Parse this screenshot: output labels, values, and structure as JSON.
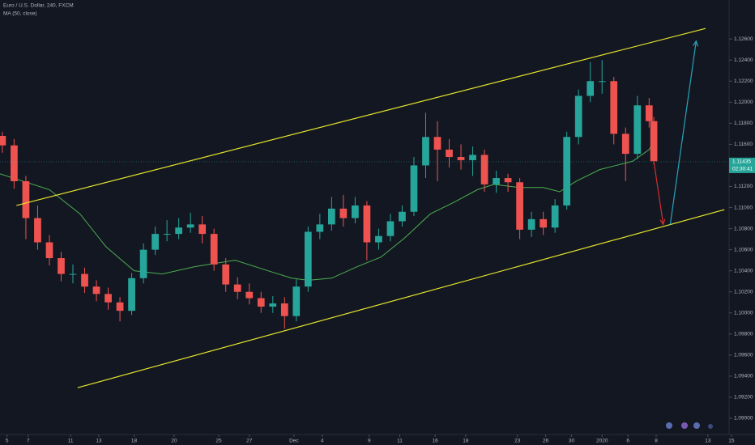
{
  "chart_data": {
    "type": "candlestick",
    "title": "Euro / U.S. Dollar, 240, FXCM",
    "up_color": "#26a69a",
    "down_color": "#ef5350",
    "x": [
      1,
      6,
      11,
      16,
      21,
      26,
      31,
      36,
      41,
      46,
      51,
      56,
      61,
      66,
      71,
      76,
      81,
      86,
      91,
      96,
      101,
      106,
      111,
      116,
      121,
      126,
      131,
      136,
      141,
      146,
      151,
      156,
      161,
      166,
      171,
      176,
      181,
      186,
      191,
      196,
      201,
      206,
      211,
      216,
      221,
      226,
      231,
      236,
      241,
      246,
      251,
      256,
      261,
      266,
      271,
      276,
      278
    ],
    "open": [
      1.1168,
      1.1159,
      1.1125,
      1.109,
      1.1067,
      1.1052,
      1.1037,
      1.1037,
      1.1025,
      1.1018,
      1.101,
      1.1002,
      1.1033,
      1.106,
      1.1075,
      1.1075,
      1.1081,
      1.1084,
      1.1075,
      1.1046,
      1.1027,
      1.102,
      1.1014,
      1.1006,
      1.1009,
      1.0997,
      1.1025,
      1.1077,
      1.1084,
      1.1099,
      1.109,
      1.1102,
      1.1067,
      1.1073,
      1.1087,
      1.1096,
      1.114,
      1.1167,
      1.1155,
      1.1148,
      1.1145,
      1.115,
      1.1122,
      1.1128,
      1.1124,
      1.1079,
      1.1089,
      1.1081,
      1.1102,
      1.1167,
      1.1206,
      1.122,
      1.122,
      1.117,
      1.1151,
      1.1197,
      1.1182
    ],
    "high": [
      1.1172,
      1.1165,
      1.113,
      1.1102,
      1.1074,
      1.1058,
      1.1046,
      1.1043,
      1.1031,
      1.1024,
      1.1015,
      1.1038,
      1.1066,
      1.1082,
      1.1088,
      1.109,
      1.1095,
      1.1092,
      1.108,
      1.1052,
      1.1034,
      1.1028,
      1.102,
      1.1016,
      1.1015,
      1.1032,
      1.1082,
      1.1094,
      1.111,
      1.1112,
      1.111,
      1.1106,
      1.108,
      1.1094,
      1.1102,
      1.1148,
      1.119,
      1.1182,
      1.1165,
      1.116,
      1.1158,
      1.1155,
      1.1135,
      1.1132,
      1.1128,
      1.1096,
      1.1096,
      1.1108,
      1.1172,
      1.1212,
      1.1238,
      1.124,
      1.1224,
      1.1176,
      1.1206,
      1.1204,
      1.1186
    ],
    "low": [
      1.1152,
      1.1118,
      1.107,
      1.106,
      1.1045,
      1.103,
      1.1028,
      1.1019,
      1.1011,
      1.1003,
      1.0992,
      1.0998,
      1.1028,
      1.1055,
      1.1068,
      1.107,
      1.1076,
      1.1066,
      1.104,
      1.102,
      1.1013,
      1.1008,
      1.1,
      1.1,
      1.0985,
      1.0992,
      1.102,
      1.107,
      1.1078,
      1.1082,
      1.1085,
      1.105,
      1.106,
      1.1068,
      1.1082,
      1.1092,
      1.1128,
      1.1125,
      1.1138,
      1.1136,
      1.113,
      1.1115,
      1.1114,
      1.1115,
      1.107,
      1.1072,
      1.1074,
      1.1076,
      1.1098,
      1.116,
      1.12,
      1.1208,
      1.116,
      1.1125,
      1.1146,
      1.1176,
      1.1141
    ],
    "close": [
      1.1159,
      1.1125,
      1.109,
      1.1067,
      1.1052,
      1.1037,
      1.1037,
      1.1025,
      1.1018,
      1.101,
      1.1002,
      1.1033,
      1.106,
      1.1075,
      1.1075,
      1.1081,
      1.1084,
      1.1075,
      1.1046,
      1.1027,
      1.102,
      1.1014,
      1.1006,
      1.1009,
      1.0997,
      1.1025,
      1.1077,
      1.1084,
      1.1099,
      1.109,
      1.1102,
      1.1067,
      1.1073,
      1.1087,
      1.1096,
      1.114,
      1.1167,
      1.1155,
      1.1148,
      1.1145,
      1.115,
      1.1122,
      1.1128,
      1.1124,
      1.1079,
      1.1089,
      1.1081,
      1.1102,
      1.1167,
      1.1206,
      1.122,
      1.122,
      1.117,
      1.1151,
      1.1197,
      1.1182,
      1.1144
    ],
    "ma": {
      "name": "MA (50, close)",
      "color": "#4caf50",
      "x": [
        0,
        21,
        34,
        45,
        57,
        69,
        83,
        100,
        114,
        124,
        131,
        141,
        152,
        162,
        172,
        183,
        193,
        203,
        210,
        221,
        231,
        238,
        245,
        255,
        262,
        269,
        276,
        278
      ],
      "values": [
        1.1132,
        1.1117,
        1.1094,
        1.1063,
        1.104,
        1.1037,
        1.1044,
        1.105,
        1.104,
        1.1033,
        1.1031,
        1.1033,
        1.1044,
        1.1053,
        1.1071,
        1.1094,
        1.1105,
        1.1117,
        1.1122,
        1.1119,
        1.1119,
        1.1115,
        1.1125,
        1.1136,
        1.114,
        1.1144,
        1.1155,
        1.1163
      ]
    },
    "drawings": [
      {
        "color": "#e4e42c",
        "x": [
          7,
          300
        ],
        "y": [
          1.1102,
          1.127
        ]
      },
      {
        "color": "#e4e42c",
        "x": [
          33,
          308
        ],
        "y": [
          1.0929,
          1.1098
        ]
      },
      {
        "color": "#d32f2f",
        "x": [
          278,
          282
        ],
        "y": [
          1.1144,
          1.1084
        ],
        "arrow": true
      },
      {
        "color": "#26a4b8",
        "x": [
          285,
          296
        ],
        "y": [
          1.1084,
          1.1258
        ],
        "arrow": true
      }
    ],
    "last_price": 1.11435,
    "countdown": "02:30:41",
    "xlim": [
      0,
      310
    ],
    "ylim": [
      1.089,
      1.1297
    ],
    "xticks": [
      {
        "value": 3,
        "label": "5"
      },
      {
        "value": 12,
        "label": "7"
      },
      {
        "value": 30,
        "label": "11"
      },
      {
        "value": 42,
        "label": "13"
      },
      {
        "value": 57,
        "label": "18"
      },
      {
        "value": 74,
        "label": "20"
      },
      {
        "value": 93,
        "label": "25"
      },
      {
        "value": 106,
        "label": "27"
      },
      {
        "value": 125,
        "label": "Dec"
      },
      {
        "value": 137,
        "label": "4"
      },
      {
        "value": 157,
        "label": "9"
      },
      {
        "value": 170,
        "label": "11"
      },
      {
        "value": 185,
        "label": "16"
      },
      {
        "value": 198,
        "label": "18"
      },
      {
        "value": 220,
        "label": "23"
      },
      {
        "value": 232,
        "label": "26"
      },
      {
        "value": 243,
        "label": "30"
      },
      {
        "value": 256,
        "label": "2020"
      },
      {
        "value": 267,
        "label": "6"
      },
      {
        "value": 279,
        "label": "8"
      },
      {
        "value": 301,
        "label": "13"
      },
      {
        "value": 311,
        "label": "15"
      }
    ],
    "yticks": [
      {
        "value": 1.126,
        "label": "1.12600"
      },
      {
        "value": 1.124,
        "label": "1.12400"
      },
      {
        "value": 1.122,
        "label": "1.12200"
      },
      {
        "value": 1.12,
        "label": "1.12000"
      },
      {
        "value": 1.118,
        "label": "1.11800"
      },
      {
        "value": 1.116,
        "label": "1.11600"
      },
      {
        "value": 1.112,
        "label": "1.11200"
      },
      {
        "value": 1.11,
        "label": "1.11000"
      },
      {
        "value": 1.108,
        "label": "1.10800"
      },
      {
        "value": 1.106,
        "label": "1.10600"
      },
      {
        "value": 1.104,
        "label": "1.10400"
      },
      {
        "value": 1.102,
        "label": "1.10200"
      },
      {
        "value": 1.1,
        "label": "1.10000"
      },
      {
        "value": 1.098,
        "label": "1.09800"
      },
      {
        "value": 1.096,
        "label": "1.09600"
      },
      {
        "value": 1.094,
        "label": "1.09400"
      },
      {
        "value": 1.092,
        "label": "1.09200"
      },
      {
        "value": 1.09,
        "label": "1.09000"
      }
    ]
  }
}
